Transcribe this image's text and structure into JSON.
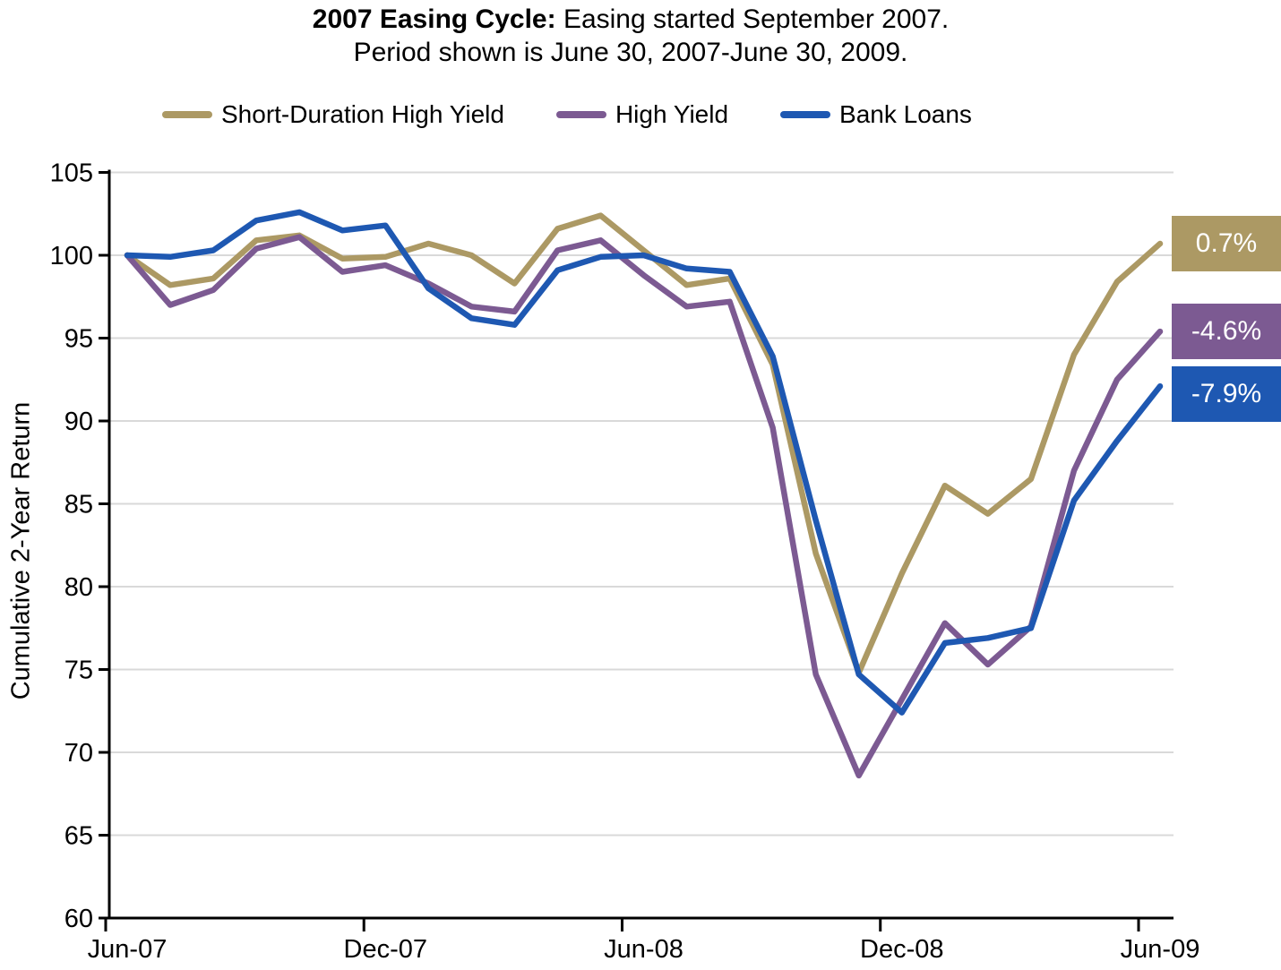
{
  "title": {
    "bold": "2007 Easing Cycle:",
    "rest": " Easing started September 2007.",
    "line2": "Period shown is June 30, 2007-June 30, 2009."
  },
  "y_axis_title": "Cumulative 2-Year Return",
  "legend": [
    {
      "label": "Short-Duration High Yield",
      "color": "#AC9964"
    },
    {
      "label": "High Yield",
      "color": "#7C5A92"
    },
    {
      "label": "Bank Loans",
      "color": "#1E58B2"
    }
  ],
  "end_labels": [
    {
      "text": "0.7%",
      "color": "#AC9964"
    },
    {
      "text": "-4.6%",
      "color": "#7C5A92"
    },
    {
      "text": "-7.9%",
      "color": "#1E58B2"
    }
  ],
  "chart_data": {
    "type": "line",
    "title": "2007 Easing Cycle: Easing started September 2007. Period shown is June 30, 2007-June 30, 2009.",
    "ylabel": "Cumulative 2-Year Return",
    "ylim": [
      60,
      105
    ],
    "y_ticks": [
      60,
      65,
      70,
      75,
      80,
      85,
      90,
      95,
      100,
      105
    ],
    "x_tick_labels": [
      "Jun-07",
      "Dec-07",
      "Jun-08",
      "Dec-08",
      "Jun-09"
    ],
    "grid": "horizontal",
    "gridline_color": "#D9D9D9",
    "legend_position": "top",
    "x": [
      "Jun-07",
      "Jul-07",
      "Aug-07",
      "Sep-07",
      "Oct-07",
      "Nov-07",
      "Dec-07",
      "Jan-08",
      "Feb-08",
      "Mar-08",
      "Apr-08",
      "May-08",
      "Jun-08",
      "Jul-08",
      "Aug-08",
      "Sep-08",
      "Oct-08",
      "Nov-08",
      "Dec-08",
      "Jan-09",
      "Feb-09",
      "Mar-09",
      "Apr-09",
      "May-09",
      "Jun-09"
    ],
    "series": [
      {
        "name": "Short-Duration High Yield",
        "color": "#AC9964",
        "final_return_label": "0.7%",
        "values": [
          100.0,
          98.2,
          98.6,
          100.9,
          101.2,
          99.8,
          99.9,
          100.7,
          100.0,
          98.3,
          101.6,
          102.4,
          100.3,
          98.2,
          98.6,
          93.4,
          82.0,
          74.8,
          80.8,
          86.1,
          84.4,
          86.5,
          94.0,
          98.4,
          100.7
        ]
      },
      {
        "name": "High Yield",
        "color": "#7C5A92",
        "final_return_label": "-4.6%",
        "values": [
          100.0,
          97.0,
          97.9,
          100.4,
          101.1,
          99.0,
          99.4,
          98.3,
          96.9,
          96.6,
          100.3,
          100.9,
          98.8,
          96.9,
          97.2,
          89.6,
          74.7,
          68.6,
          73.2,
          77.8,
          75.3,
          77.6,
          87.0,
          92.5,
          95.4
        ]
      },
      {
        "name": "Bank Loans",
        "color": "#1E58B2",
        "final_return_label": "-7.9%",
        "values": [
          100.0,
          99.9,
          100.3,
          102.1,
          102.6,
          101.5,
          101.8,
          98.0,
          96.2,
          95.8,
          99.1,
          99.9,
          100.0,
          99.2,
          99.0,
          93.9,
          84.0,
          74.7,
          72.4,
          76.6,
          76.9,
          77.5,
          85.2,
          88.8,
          92.1
        ]
      }
    ]
  }
}
